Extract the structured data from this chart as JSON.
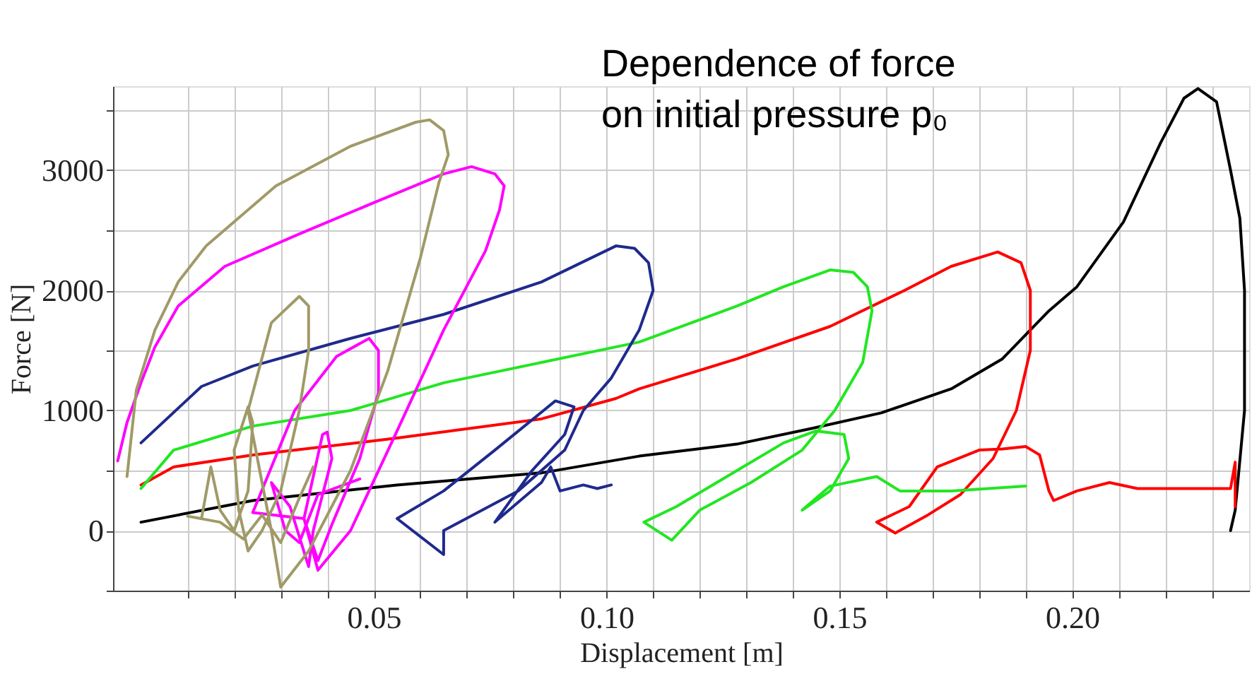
{
  "chart_data": {
    "type": "line",
    "xlabel": "Displacement [m]",
    "ylabel": "Force [N]",
    "annotations": [
      "Dependence of force\non initial pressure p₀"
    ],
    "xlim": [
      -0.006,
      0.238
    ],
    "ylim": [
      -500,
      3700
    ],
    "xticks": [
      {
        "value": 0.01,
        "label": null
      },
      {
        "value": 0.02,
        "label": null
      },
      {
        "value": 0.03,
        "label": null
      },
      {
        "value": 0.04,
        "label": null
      },
      0.05,
      {
        "value": 0.06,
        "label": null
      },
      {
        "value": 0.07,
        "label": null
      },
      {
        "value": 0.08,
        "label": null
      },
      {
        "value": 0.09,
        "label": null
      },
      {
        "value": 0.1,
        "label": "0.10"
      },
      {
        "value": 0.11,
        "label": null
      },
      {
        "value": 0.12,
        "label": null
      },
      {
        "value": 0.13,
        "label": null
      },
      {
        "value": 0.14,
        "label": null
      },
      0.15,
      {
        "value": 0.16,
        "label": null
      },
      {
        "value": 0.17,
        "label": null
      },
      {
        "value": 0.18,
        "label": null
      },
      {
        "value": 0.19,
        "label": null
      },
      {
        "value": 0.2,
        "label": "0.20"
      },
      {
        "value": 0.21,
        "label": null
      },
      {
        "value": 0.22,
        "label": null
      },
      {
        "value": 0.23,
        "label": null
      }
    ],
    "yticks": [
      {
        "value": -500,
        "label": null
      },
      0,
      {
        "value": 500,
        "label": null
      },
      1000,
      {
        "value": 1500,
        "label": null
      },
      2000,
      {
        "value": 2500,
        "label": null
      },
      3000,
      {
        "value": 3500,
        "label": null
      }
    ],
    "grid": true,
    "marker": "none",
    "line_style": "solid",
    "series": [
      {
        "color": "#000000",
        "x": [
          0,
          0.024,
          0.055,
          0.086,
          0.107,
          0.128,
          0.144,
          0.159,
          0.174,
          0.185,
          0.195,
          0.201,
          0.211,
          0.219,
          0.224,
          0.227,
          0.231,
          0.234,
          0.236,
          0.237,
          0.237,
          0.235,
          0.234
        ],
        "values": [
          70,
          250,
          380,
          480,
          620,
          720,
          850,
          980,
          1180,
          1430,
          1830,
          2030,
          2570,
          3230,
          3600,
          3680,
          3570,
          3000,
          2600,
          2000,
          1000,
          170,
          0
        ]
      },
      {
        "color": "#ff0000",
        "x": [
          0,
          0.007,
          0.024,
          0.055,
          0.086,
          0.102,
          0.107,
          0.128,
          0.148,
          0.164,
          0.174,
          0.184,
          0.189,
          0.191,
          0.191,
          0.188,
          0.183,
          0.176,
          0.169,
          0.162,
          0.158,
          0.165,
          0.171,
          0.18,
          0.185,
          0.19,
          0.193,
          0.195,
          0.196,
          0.201,
          0.208,
          0.214,
          0.234,
          0.235,
          0.235
        ],
        "values": [
          380,
          530,
          630,
          770,
          930,
          1100,
          1180,
          1430,
          1700,
          2000,
          2200,
          2320,
          2230,
          2000,
          1500,
          1000,
          600,
          300,
          130,
          -20,
          70,
          200,
          530,
          670,
          680,
          700,
          630,
          330,
          250,
          330,
          400,
          350,
          350,
          570,
          200
        ]
      },
      {
        "color": "#22e622",
        "x": [
          0,
          0.007,
          0.024,
          0.045,
          0.065,
          0.086,
          0.107,
          0.128,
          0.138,
          0.148,
          0.153,
          0.156,
          0.157,
          0.155,
          0.149,
          0.142,
          0.131,
          0.12,
          0.114,
          0.108,
          0.115,
          0.128,
          0.138,
          0.145,
          0.151,
          0.152,
          0.148,
          0.142,
          0.148,
          0.158,
          0.163,
          0.174,
          0.19
        ],
        "values": [
          350,
          670,
          870,
          1000,
          1230,
          1400,
          1570,
          1870,
          2030,
          2170,
          2150,
          2030,
          1830,
          1400,
          1000,
          670,
          400,
          170,
          -80,
          70,
          200,
          500,
          730,
          830,
          800,
          600,
          330,
          170,
          370,
          450,
          330,
          330,
          370
        ]
      },
      {
        "color": "#1f2a8c",
        "x": [
          0,
          0.013,
          0.024,
          0.045,
          0.065,
          0.086,
          0.102,
          0.106,
          0.109,
          0.11,
          0.107,
          0.101,
          0.095,
          0.091,
          0.081,
          0.065,
          0.065,
          0.055,
          0.065,
          0.076,
          0.089,
          0.093,
          0.091,
          0.084,
          0.076,
          0.086,
          0.088,
          0.09,
          0.095,
          0.098,
          0.101
        ],
        "values": [
          730,
          1200,
          1370,
          1600,
          1800,
          2070,
          2370,
          2350,
          2230,
          2000,
          1670,
          1270,
          1000,
          670,
          330,
          0,
          -200,
          100,
          330,
          670,
          1080,
          1030,
          800,
          500,
          70,
          400,
          530,
          330,
          380,
          350,
          380
        ]
      },
      {
        "color": "#ff00ff",
        "x": [
          -0.005,
          -0.003,
          0,
          0.003,
          0.008,
          0.018,
          0.034,
          0.05,
          0.065,
          0.071,
          0.076,
          0.078,
          0.077,
          0.074,
          0.065,
          0.055,
          0.045,
          0.038,
          0.035,
          0.024,
          0.033,
          0.042,
          0.049,
          0.051,
          0.051,
          0.047,
          0.041,
          0.038,
          0.035,
          0.039,
          0.04,
          0.041,
          0.037,
          0.036,
          0.032,
          0.028,
          0.031,
          0.034,
          0.038,
          0.047
        ],
        "values": [
          580,
          900,
          1230,
          1530,
          1870,
          2200,
          2470,
          2730,
          2970,
          3030,
          2970,
          2870,
          2670,
          2330,
          1670,
          830,
          0,
          -330,
          100,
          150,
          1000,
          1450,
          1600,
          1500,
          1150,
          600,
          50,
          -250,
          100,
          800,
          820,
          600,
          0,
          -300,
          200,
          400,
          0,
          -100,
          300,
          430
        ]
      },
      {
        "color": "#a09a68",
        "x": [
          -0.003,
          -0.001,
          0.003,
          0.008,
          0.014,
          0.029,
          0.045,
          0.059,
          0.062,
          0.065,
          0.066,
          0.064,
          0.06,
          0.053,
          0.045,
          0.036,
          0.03,
          0.028,
          0.023,
          0.028,
          0.034,
          0.036,
          0.036,
          0.034,
          0.03,
          0.026,
          0.023,
          0.021,
          0.02,
          0.023,
          0.024,
          0.023,
          0.02,
          0.017,
          0.015,
          0.013,
          0.01,
          0.017,
          0.022,
          0.026,
          0.03,
          0.034,
          0.037
        ],
        "values": [
          450,
          1170,
          1670,
          2070,
          2370,
          2870,
          3200,
          3400,
          3420,
          3330,
          3130,
          2900,
          2270,
          1330,
          500,
          -170,
          -470,
          0,
          1000,
          1730,
          1950,
          1870,
          1500,
          1000,
          330,
          0,
          -170,
          170,
          670,
          1030,
          900,
          330,
          0,
          170,
          530,
          100,
          120,
          70,
          -70,
          130,
          -100,
          270,
          530
        ]
      }
    ]
  }
}
